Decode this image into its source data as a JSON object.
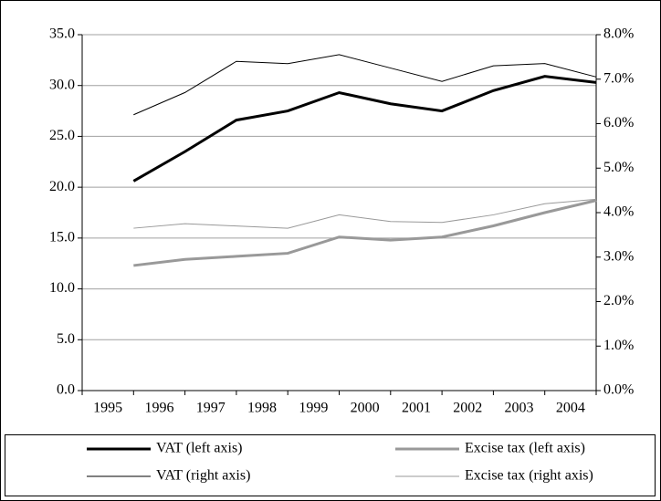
{
  "chart_data": {
    "type": "line",
    "categories": [
      "1995",
      "1996",
      "1997",
      "1998",
      "1999",
      "2000",
      "2001",
      "2002",
      "2003",
      "2004"
    ],
    "series": [
      {
        "name": "VAT (left axis)",
        "color": "#000000",
        "values": [
          20.6,
          23.5,
          26.6,
          27.5,
          29.3,
          28.2,
          27.5,
          29.5,
          30.9,
          30.3
        ]
      },
      {
        "name": "Excise tax (left axis)",
        "color": "#999999",
        "values": [
          12.3,
          12.9,
          13.2,
          13.5,
          15.1,
          14.8,
          15.1,
          16.2,
          17.5,
          18.7
        ]
      },
      {
        "name": "VAT (right axis)",
        "color": "#000000",
        "axis": "y2",
        "values": [
          6.2,
          6.7,
          7.4,
          7.35,
          7.55,
          7.25,
          6.95,
          7.3,
          7.35,
          7.05
        ]
      },
      {
        "name": "Excise tax (right axis)",
        "color": "#999999",
        "axis": "y2",
        "values": [
          3.65,
          3.75,
          3.7,
          3.65,
          3.95,
          3.8,
          3.78,
          3.95,
          4.2,
          4.3
        ]
      }
    ],
    "ylim": [
      0,
      35
    ],
    "yticks": [
      {
        "value": 0,
        "label": "0.0"
      },
      {
        "value": 5,
        "label": "5.0"
      },
      {
        "value": 10,
        "label": "10.0"
      },
      {
        "value": 15,
        "label": "15.0"
      },
      {
        "value": 20,
        "label": "20.0"
      },
      {
        "value": 25,
        "label": "25.0"
      },
      {
        "value": 30,
        "label": "30.0"
      },
      {
        "value": 35,
        "label": "35.0"
      }
    ],
    "y2lim": [
      0,
      8
    ],
    "y2ticks": [
      {
        "value": 0,
        "label": "0.0%"
      },
      {
        "value": 1,
        "label": "1.0%"
      },
      {
        "value": 2,
        "label": "2.0%"
      },
      {
        "value": 3,
        "label": "3.0%"
      },
      {
        "value": 4,
        "label": "4.0%"
      },
      {
        "value": 5,
        "label": "5.0%"
      },
      {
        "value": 6,
        "label": "6.0%"
      },
      {
        "value": 7,
        "label": "7.0%"
      },
      {
        "value": 8,
        "label": "8.0%"
      }
    ],
    "grid": true
  }
}
